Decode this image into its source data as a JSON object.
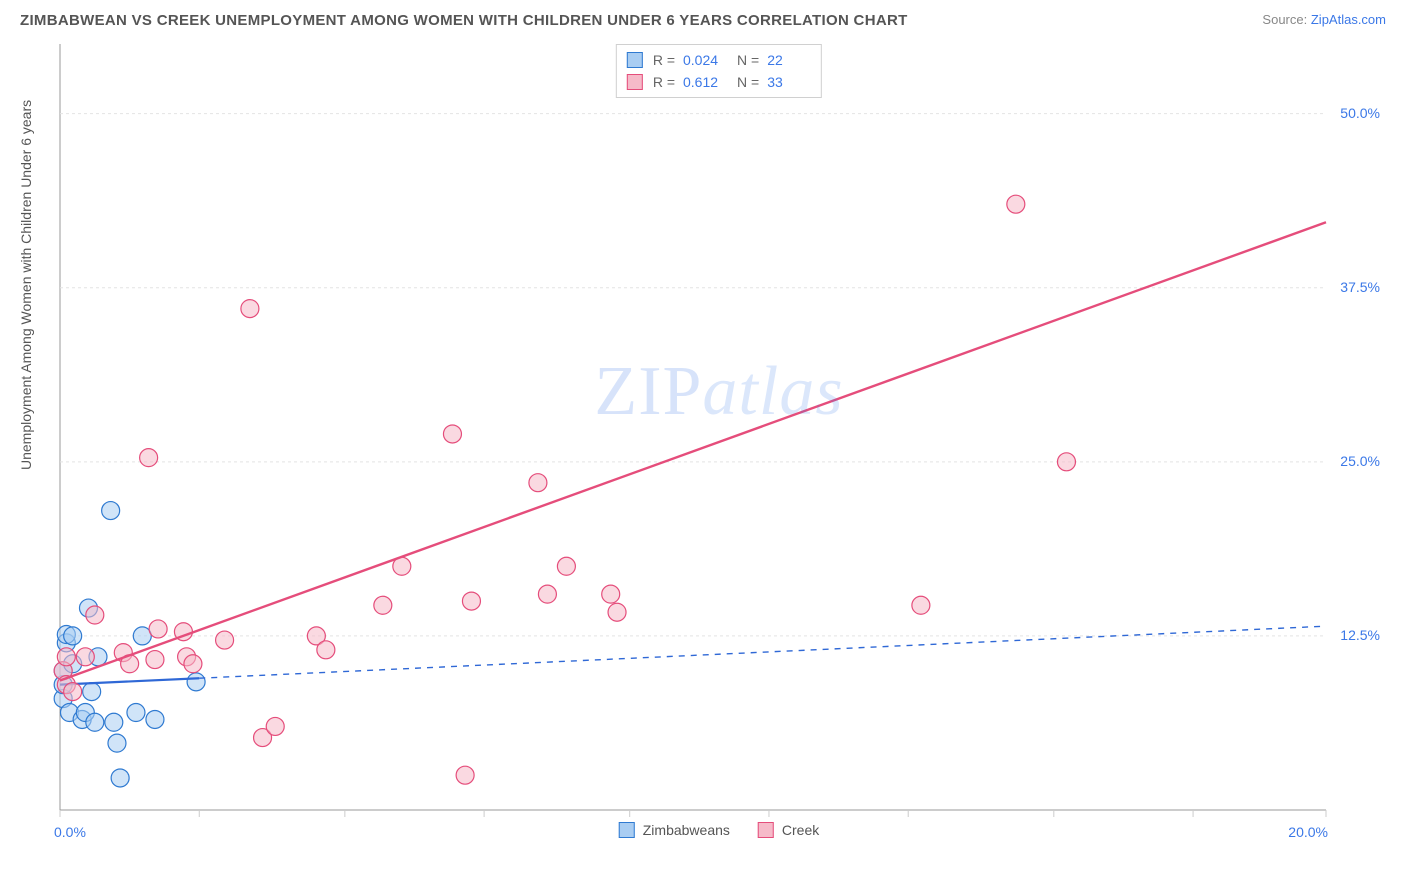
{
  "title": "ZIMBABWEAN VS CREEK UNEMPLOYMENT AMONG WOMEN WITH CHILDREN UNDER 6 YEARS CORRELATION CHART",
  "source_label": "Source:",
  "source_site": "ZipAtlas.com",
  "ylabel": "Unemployment Among Women with Children Under 6 years",
  "watermark_a": "ZIP",
  "watermark_b": "atlas",
  "chart": {
    "type": "scatter",
    "background_color": "#ffffff",
    "grid_color": "#e4e4e4",
    "axis_color": "#999999",
    "tick_color": "#cccccc",
    "label_color": "#3b78e7",
    "xlim": [
      0,
      20
    ],
    "ylim": [
      0,
      55
    ],
    "x_ticks": [
      0,
      2.2,
      4.5,
      6.7,
      9.0,
      11.2,
      13.4,
      15.7,
      17.9,
      20.0
    ],
    "y_gridlines": [
      12.5,
      25.0,
      37.5,
      50.0
    ],
    "y_tick_labels": [
      "12.5%",
      "25.0%",
      "37.5%",
      "50.0%"
    ],
    "x_tick_labels": {
      "0": "0.0%",
      "20": "20.0%"
    },
    "marker_radius": 9,
    "marker_stroke_width": 1.2,
    "series": [
      {
        "name": "Zimbabweans",
        "fill": "#a9cdf2",
        "stroke": "#2f7ad1",
        "trend_solid_xmax": 2.2,
        "trend": {
          "y_at_x0": 9.0,
          "y_at_xmax": 13.2,
          "stroke": "#2f68d6",
          "width": 2.2,
          "dash": "6 6"
        },
        "points": [
          [
            0.05,
            8.0
          ],
          [
            0.05,
            9.0
          ],
          [
            0.05,
            10.0
          ],
          [
            0.1,
            12.0
          ],
          [
            0.1,
            12.6
          ],
          [
            0.15,
            7.0
          ],
          [
            0.2,
            10.5
          ],
          [
            0.2,
            12.5
          ],
          [
            0.35,
            6.5
          ],
          [
            0.4,
            7.0
          ],
          [
            0.45,
            14.5
          ],
          [
            0.5,
            8.5
          ],
          [
            0.55,
            6.3
          ],
          [
            0.6,
            11.0
          ],
          [
            0.8,
            21.5
          ],
          [
            0.85,
            6.3
          ],
          [
            0.9,
            4.8
          ],
          [
            0.95,
            2.3
          ],
          [
            1.2,
            7.0
          ],
          [
            1.3,
            12.5
          ],
          [
            1.5,
            6.5
          ],
          [
            2.15,
            9.2
          ]
        ]
      },
      {
        "name": "Creek",
        "fill": "#f6bac9",
        "stroke": "#e54d7b",
        "trend_solid_xmax": 20.0,
        "trend": {
          "y_at_x0": 9.3,
          "y_at_xmax": 42.2,
          "stroke": "#e54d7b",
          "width": 2.4,
          "dash": ""
        },
        "points": [
          [
            0.05,
            10.0
          ],
          [
            0.1,
            11.0
          ],
          [
            0.1,
            9.0
          ],
          [
            0.2,
            8.5
          ],
          [
            0.4,
            11.0
          ],
          [
            0.55,
            14.0
          ],
          [
            1.0,
            11.3
          ],
          [
            1.1,
            10.5
          ],
          [
            1.4,
            25.3
          ],
          [
            1.5,
            10.8
          ],
          [
            1.55,
            13.0
          ],
          [
            1.95,
            12.8
          ],
          [
            2.0,
            11.0
          ],
          [
            2.1,
            10.5
          ],
          [
            2.6,
            12.2
          ],
          [
            3.0,
            36.0
          ],
          [
            3.2,
            5.2
          ],
          [
            3.4,
            6.0
          ],
          [
            4.05,
            12.5
          ],
          [
            4.2,
            11.5
          ],
          [
            5.1,
            14.7
          ],
          [
            5.4,
            17.5
          ],
          [
            6.2,
            27.0
          ],
          [
            6.4,
            2.5
          ],
          [
            6.5,
            15.0
          ],
          [
            7.55,
            23.5
          ],
          [
            7.7,
            15.5
          ],
          [
            8.0,
            17.5
          ],
          [
            8.7,
            15.5
          ],
          [
            8.8,
            14.2
          ],
          [
            13.6,
            14.7
          ],
          [
            15.1,
            43.5
          ],
          [
            15.9,
            25.0
          ]
        ]
      }
    ],
    "legend_top": [
      {
        "swatch_fill": "#a9cdf2",
        "swatch_stroke": "#2f7ad1",
        "r_label": "R =",
        "r": "0.024",
        "n_label": "N =",
        "n": "22"
      },
      {
        "swatch_fill": "#f6bac9",
        "swatch_stroke": "#e54d7b",
        "r_label": "R =",
        "r": "0.612",
        "n_label": "N =",
        "n": "33"
      }
    ],
    "legend_bottom": [
      {
        "swatch_fill": "#a9cdf2",
        "swatch_stroke": "#2f7ad1",
        "label": "Zimbabweans"
      },
      {
        "swatch_fill": "#f6bac9",
        "swatch_stroke": "#e54d7b",
        "label": "Creek"
      }
    ]
  }
}
